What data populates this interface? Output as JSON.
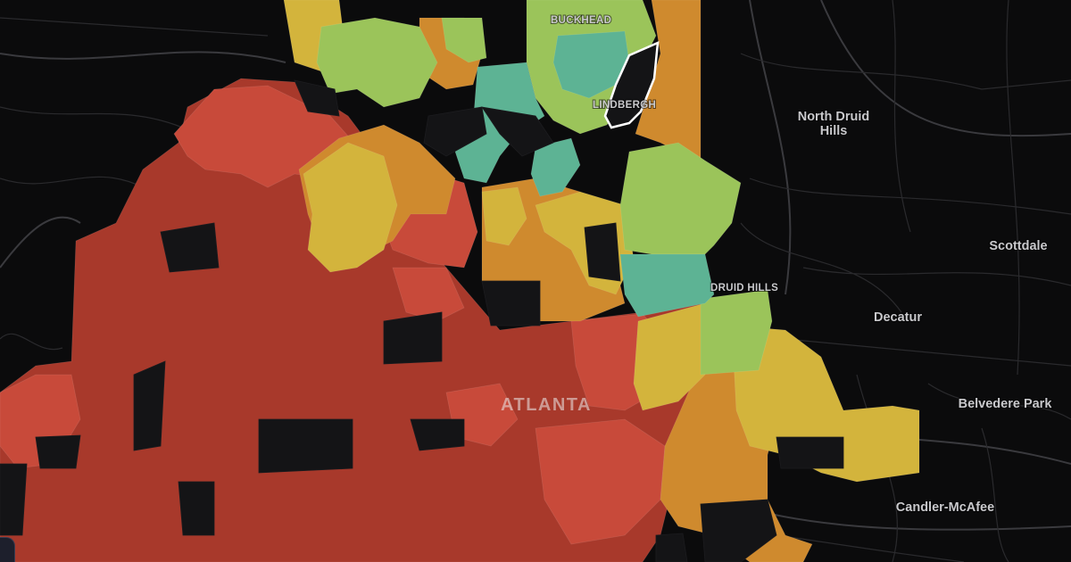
{
  "map": {
    "colors": {
      "background": "#0b0b0c",
      "dark_red": "#a8392b",
      "red": "#c84a3a",
      "orange": "#cf8a2e",
      "yellow": "#d3b43c",
      "light_green": "#9bc45a",
      "teal": "#5db394",
      "no_data": "#141416",
      "highlight_outline": "#ffffff"
    },
    "labels": {
      "buckhead": "BUCKHEAD",
      "lindbergh": "LINDBERGH",
      "north_druid_hills_line1": "North Druid",
      "north_druid_hills_line2": "Hills",
      "scottdale": "Scottdale",
      "druid_hills": "DRUID HILLS",
      "decatur": "Decatur",
      "atlanta": "ATLANTA",
      "belvedere_park": "Belvedere Park",
      "candler_mcafee": "Candler-McAfee"
    }
  }
}
